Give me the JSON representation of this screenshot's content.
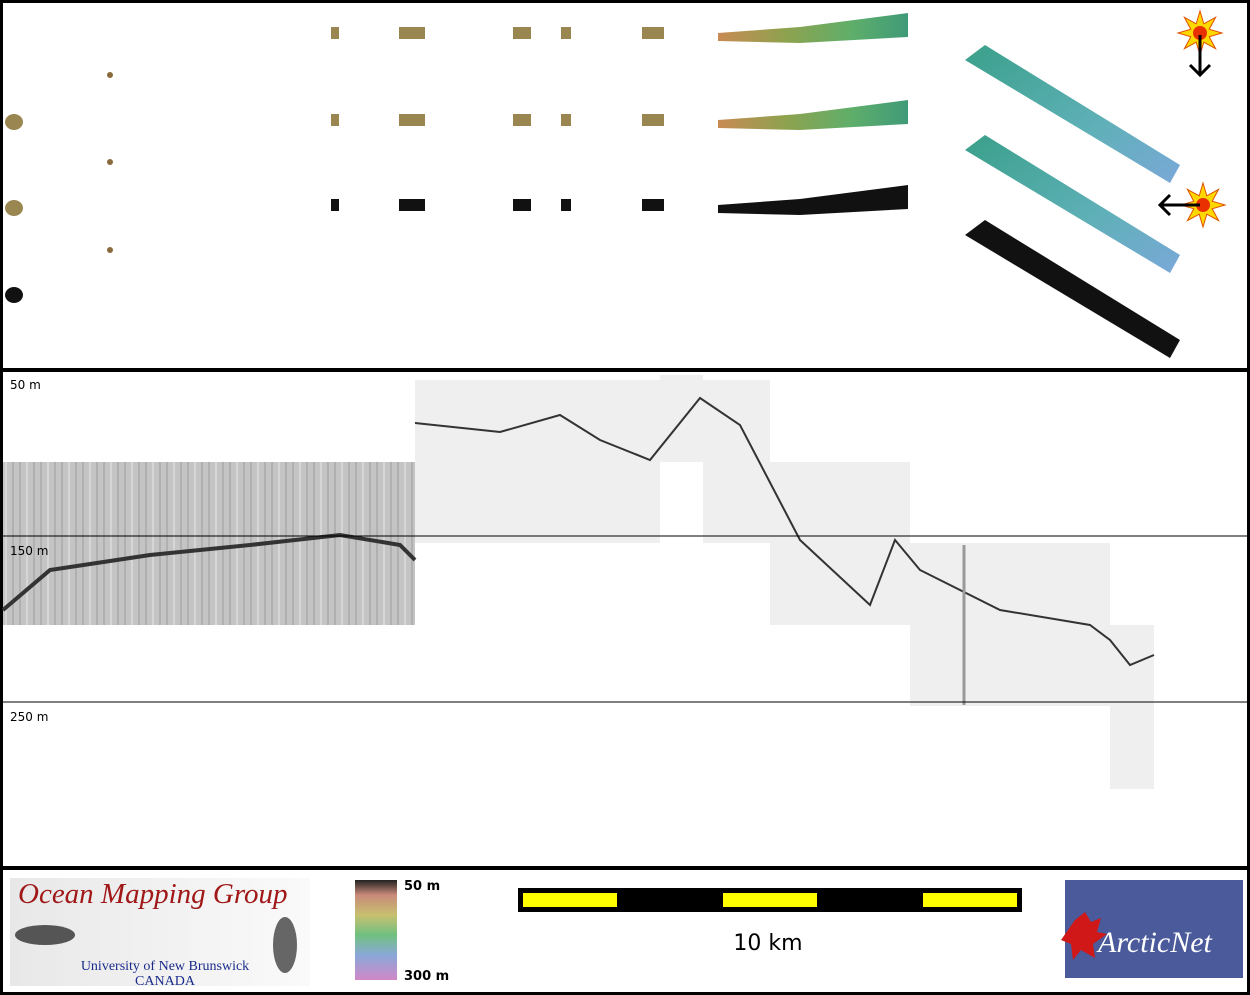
{
  "profile": {
    "depth_labels": [
      "50 m",
      "150 m",
      "250 m"
    ]
  },
  "footer": {
    "logo": {
      "title": "Ocean Mapping Group",
      "university": "University of New Brunswick",
      "country": "CANADA"
    },
    "depth_scale": {
      "top": "50 m",
      "bottom": "300 m"
    },
    "scale_bar": {
      "label": "10 km"
    },
    "partner_logo": "ArcticNet"
  }
}
